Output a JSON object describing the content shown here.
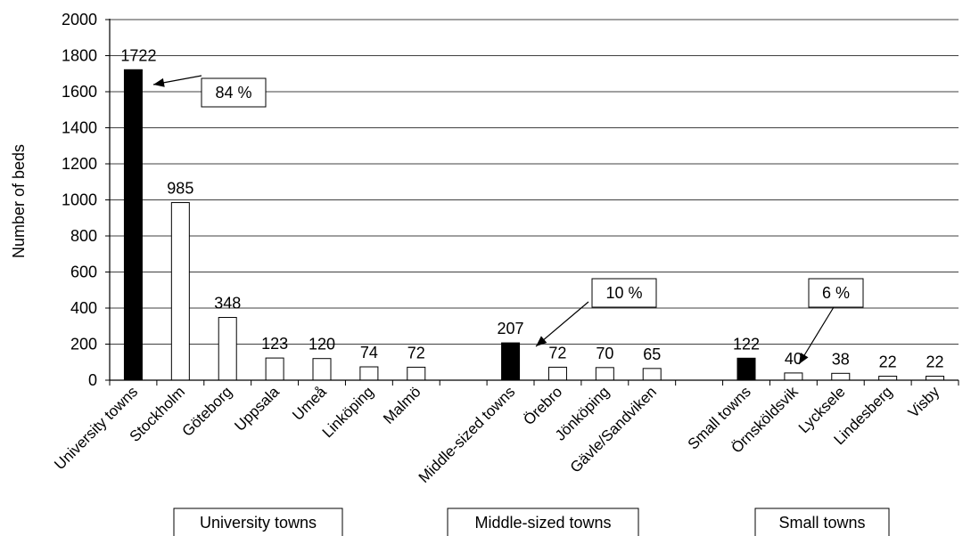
{
  "chart_data": {
    "type": "bar",
    "title": "",
    "xlabel": "",
    "ylabel": "Number of beds",
    "ylim": [
      0,
      2000
    ],
    "yticks": [
      0,
      200,
      400,
      600,
      800,
      1000,
      1200,
      1400,
      1600,
      1800,
      2000
    ],
    "grid": "horizontal",
    "colors": {
      "total": "#000000",
      "town": "#ffffff",
      "edge": "#000000",
      "grid": "#000000"
    },
    "categories": [
      "University towns",
      "Stockholm",
      "Göteborg",
      "Uppsala",
      "Umeå",
      "Linköping",
      "Malmö",
      "",
      "Middle-sized towns",
      "Örebro",
      "Jönköping",
      "Gävle/Sandviken",
      "",
      "Small towns",
      "Örnsköldsvik",
      "Lycksele",
      "Lindesberg",
      "Visby"
    ],
    "values": [
      1722,
      985,
      348,
      123,
      120,
      74,
      72,
      null,
      207,
      72,
      70,
      65,
      null,
      122,
      40,
      38,
      22,
      22
    ],
    "kinds": [
      "total",
      "town",
      "town",
      "town",
      "town",
      "town",
      "town",
      "gap",
      "total",
      "town",
      "town",
      "town",
      "gap",
      "total",
      "town",
      "town",
      "town",
      "town"
    ],
    "data_labels": [
      "1722",
      "985",
      "348",
      "123",
      "120",
      "74",
      "72",
      "",
      "207",
      "72",
      "70",
      "65",
      "",
      "122",
      "40",
      "38",
      "22",
      "22"
    ],
    "groups": [
      {
        "label": "University towns",
        "share": "84 %",
        "target": 0
      },
      {
        "label": "Middle-sized towns",
        "share": "10 %",
        "target": 8
      },
      {
        "label": "Small towns",
        "share": "6 %",
        "target": 13
      }
    ]
  }
}
